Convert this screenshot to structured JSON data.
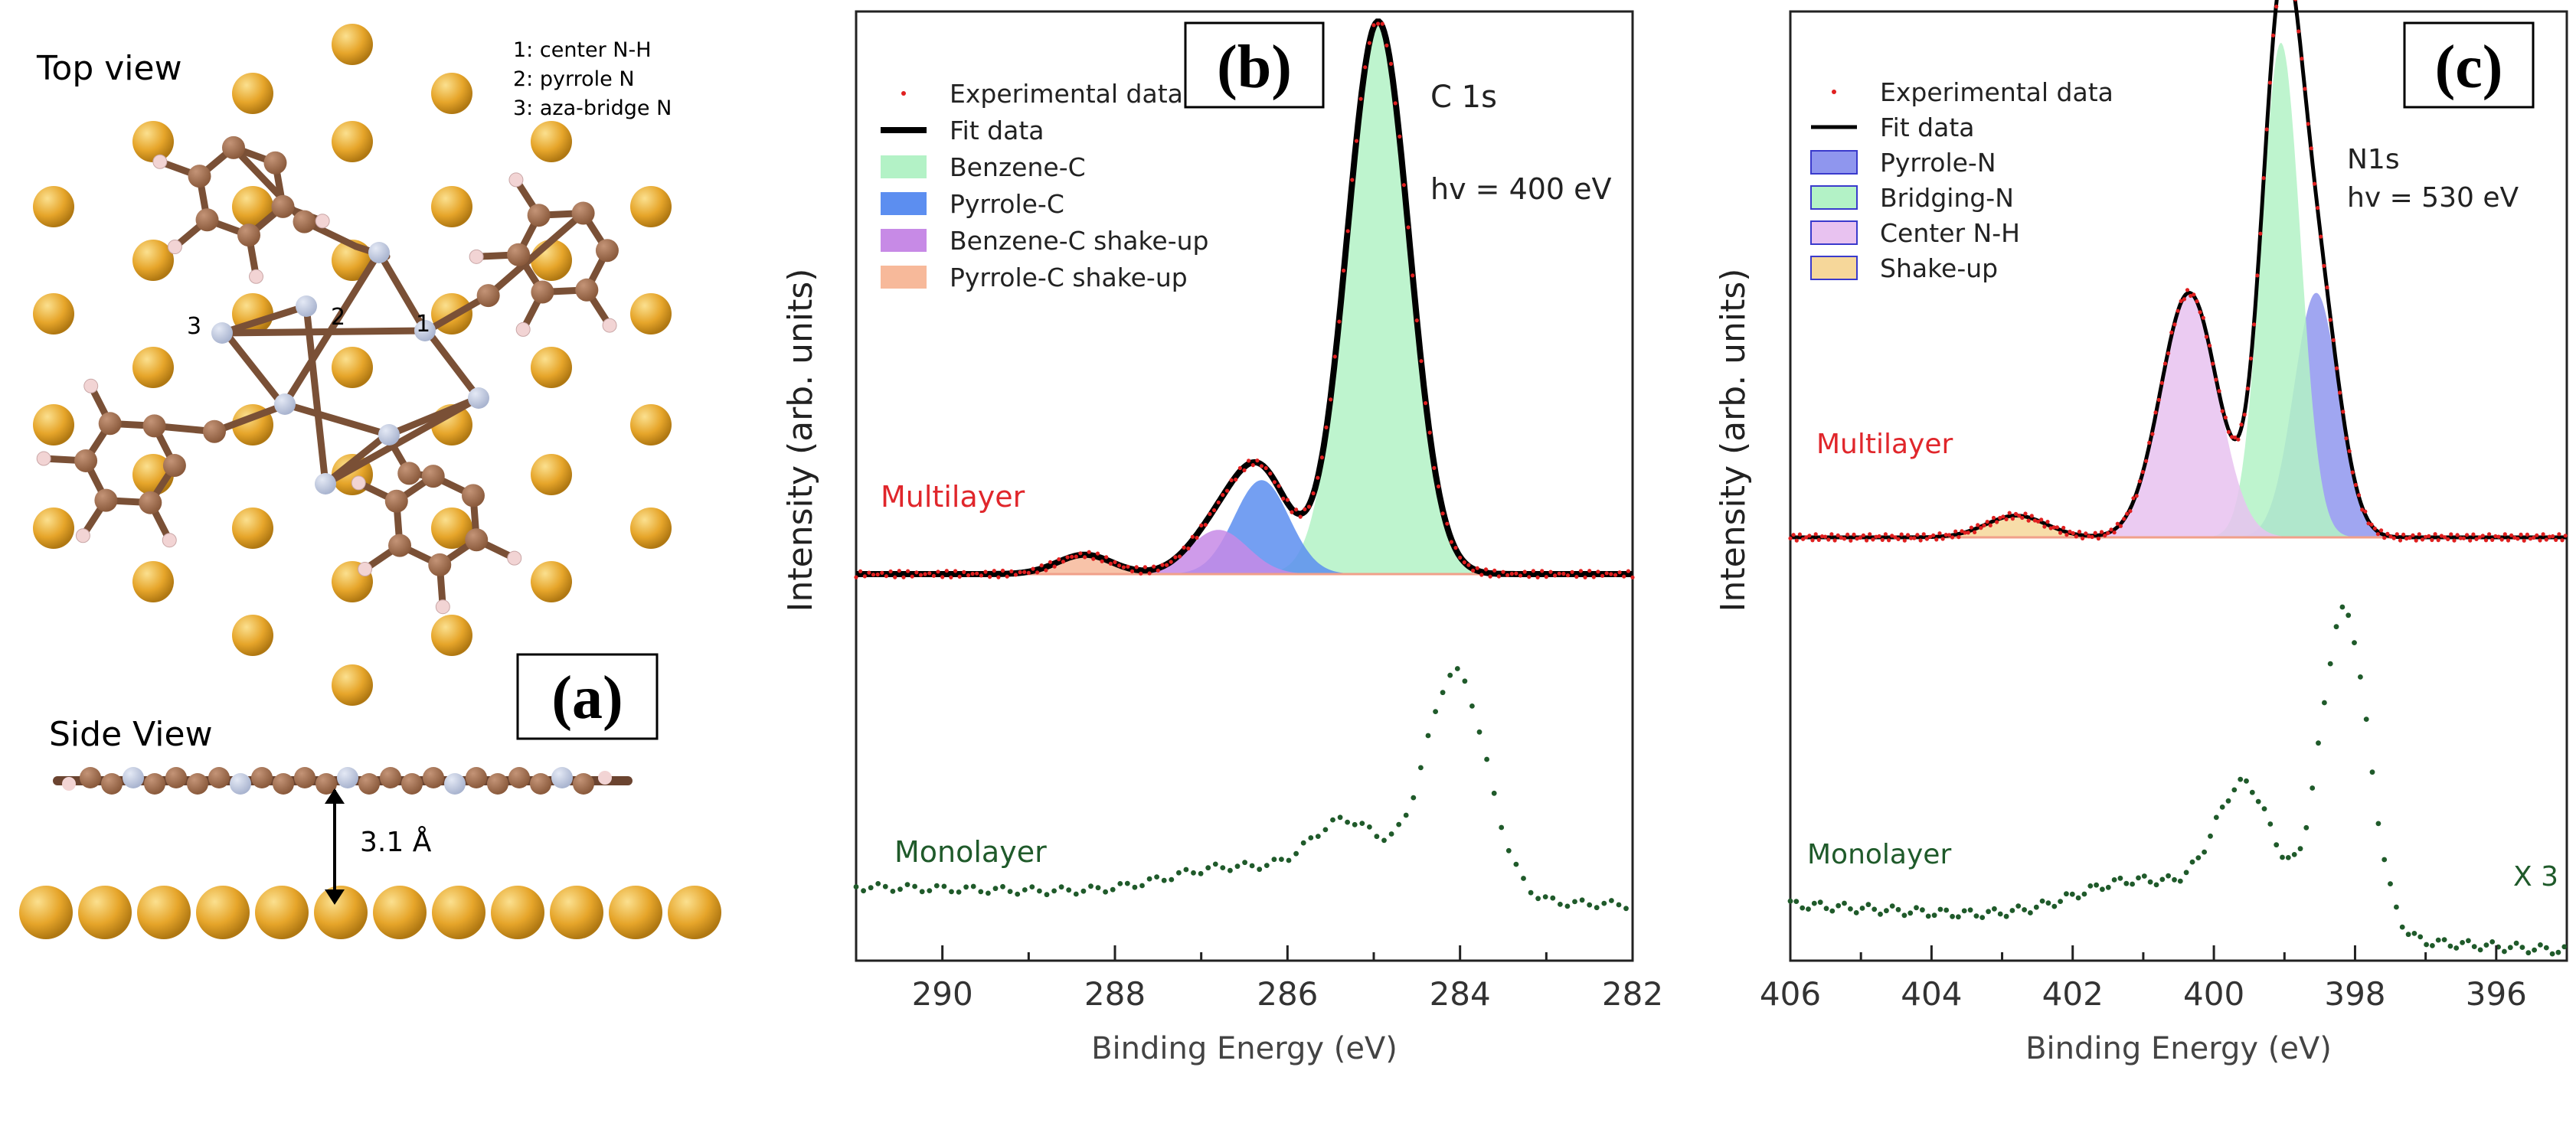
{
  "panel_a": {
    "label": "(a)",
    "top_view_title": "Top view",
    "side_view_title": "Side View",
    "legend": [
      "1: center N-H",
      "2: pyrrole N",
      "3: aza-bridge N"
    ],
    "site_labels": [
      "1",
      "2",
      "3"
    ],
    "distance_label": "3.1 Å",
    "colors": {
      "gold": "#e6a52a",
      "carbon": "#8a5a3c",
      "nitrogen": "#a9b4cf",
      "hydrogen": "#f2d4d4"
    }
  },
  "chart_data": [
    {
      "type": "area",
      "panel_label": "(b)",
      "title": "C 1s",
      "photon_energy": "hv = 400 eV",
      "xlabel": "Binding Energy (eV)",
      "ylabel": "Intensity (arb. units)",
      "xlim": [
        291,
        282
      ],
      "x_ticks": [
        290,
        288,
        286,
        284,
        282
      ],
      "ylim": [
        0,
        1.25
      ],
      "series_labels": {
        "multilayer": "Multilayer",
        "monolayer": "Monolayer"
      },
      "legend": [
        "Experimental data",
        "Fit data",
        "Benzene-C",
        "Pyrrole-C",
        "Benzene-C shake-up",
        "Pyrrole-C shake-up"
      ],
      "baselines": {
        "multilayer": 0.47,
        "monolayer": 0.0
      },
      "components": [
        {
          "name": "Benzene-C",
          "center": 284.95,
          "fwhm": 0.85,
          "height": 1.0,
          "color": "#b3f2c6"
        },
        {
          "name": "Pyrrole-C",
          "center": 286.3,
          "fwhm": 0.75,
          "height": 0.17,
          "color": "#5c8ef0"
        },
        {
          "name": "Benzene-C shake-up",
          "center": 286.8,
          "fwhm": 0.8,
          "height": 0.08,
          "color": "#c78ae6"
        },
        {
          "name": "Pyrrole-C shake-up",
          "center": 288.35,
          "fwhm": 0.75,
          "height": 0.035,
          "color": "#f7b99a"
        }
      ],
      "monolayer_peaks": [
        {
          "center": 284.05,
          "fwhm": 0.85,
          "height": 0.48
        },
        {
          "center": 285.3,
          "fwhm": 1.0,
          "height": 0.15
        },
        {
          "center": 286.6,
          "fwhm": 1.8,
          "height": 0.06
        }
      ]
    },
    {
      "type": "area",
      "panel_label": "(c)",
      "title": "N1s",
      "photon_energy": "hv = 530 eV",
      "xlabel": "Binding Energy (eV)",
      "ylabel": "Intensity (arb. units)",
      "xlim": [
        406,
        395
      ],
      "x_ticks": [
        406,
        404,
        402,
        400,
        398,
        396
      ],
      "ylim": [
        0,
        1.25
      ],
      "series_labels": {
        "multilayer": "Multilayer",
        "monolayer": "Monolayer"
      },
      "scale_label": "X 3",
      "legend": [
        "Experimental data",
        "Fit data",
        "Pyrrole-N",
        "Bridging-N",
        "Center N-H",
        "Shake-up"
      ],
      "baselines": {
        "multilayer": 0.42,
        "monolayer": 0.0
      },
      "components": [
        {
          "name": "Pyrrole-N",
          "center": 398.55,
          "fwhm": 0.75,
          "height": 0.45,
          "color": "#8f96ee"
        },
        {
          "name": "Bridging-N",
          "center": 399.05,
          "fwhm": 0.65,
          "height": 0.91,
          "color": "#b3f2c6"
        },
        {
          "name": "Center N-H",
          "center": 400.35,
          "fwhm": 0.95,
          "height": 0.45,
          "color": "#e8c2f0"
        },
        {
          "name": "Shake-up",
          "center": 402.8,
          "fwhm": 1.0,
          "height": 0.04,
          "color": "#f6d79a"
        }
      ],
      "monolayer_peaks": [
        {
          "center": 398.15,
          "fwhm": 0.8,
          "height": 0.58
        },
        {
          "center": 399.55,
          "fwhm": 1.0,
          "height": 0.24
        },
        {
          "center": 401.0,
          "fwhm": 2.2,
          "height": 0.08
        }
      ]
    }
  ]
}
